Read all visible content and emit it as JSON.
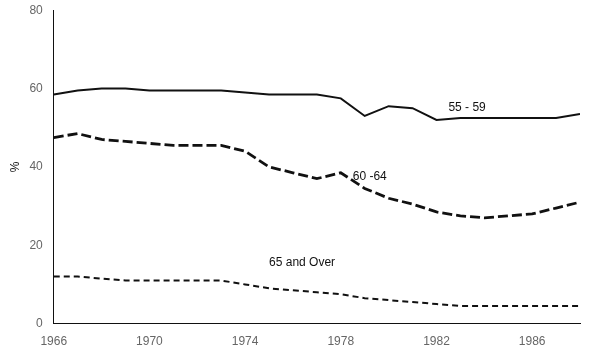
{
  "chart_data": {
    "type": "line",
    "x": [
      1966,
      1967,
      1968,
      1969,
      1970,
      1971,
      1972,
      1973,
      1974,
      1975,
      1976,
      1977,
      1978,
      1979,
      1980,
      1981,
      1982,
      1983,
      1984,
      1985,
      1986,
      1987,
      1988
    ],
    "series": [
      {
        "line_style": "solid",
        "values": [
          58.5,
          59.5,
          60.0,
          60.0,
          59.5,
          59.5,
          59.5,
          59.5,
          59.0,
          58.5,
          58.5,
          58.5,
          57.5,
          53.0,
          55.5,
          55.0,
          52.0,
          52.5,
          52.5,
          52.5,
          52.5,
          52.5,
          53.5
        ]
      },
      {
        "line_style": "long_dashed",
        "values": [
          47.5,
          48.5,
          47.0,
          46.5,
          46.0,
          45.5,
          45.5,
          45.5,
          44.0,
          40.0,
          38.5,
          37.0,
          38.5,
          34.5,
          32.0,
          30.5,
          28.5,
          27.5,
          27.0,
          27.5,
          28.0,
          29.5,
          31.0
        ]
      },
      {
        "line_style": "dashed",
        "values": [
          12.0,
          12.0,
          11.5,
          11.0,
          11.0,
          11.0,
          11.0,
          11.0,
          10.0,
          9.0,
          8.5,
          8.0,
          7.5,
          6.5,
          6.0,
          5.5,
          5.0,
          4.5,
          4.5,
          4.5,
          4.5,
          4.5,
          4.5
        ]
      }
    ],
    "annotations": [
      {
        "text": "55 - 59",
        "x": 1982.5,
        "y": 55.0
      },
      {
        "text": "60 -64",
        "x": 1978.5,
        "y": 37.5
      },
      {
        "text": "65 and Over",
        "x": 1975.0,
        "y": 15.5
      }
    ],
    "ylabel": "%",
    "color": "#111111",
    "xlim": [
      1966,
      1988
    ],
    "xticks": [
      1966,
      1970,
      1974,
      1978,
      1982,
      1986
    ],
    "ylim": [
      0,
      80
    ],
    "yticks": [
      0,
      20,
      40,
      60,
      80
    ],
    "grid": false,
    "legend": false
  }
}
